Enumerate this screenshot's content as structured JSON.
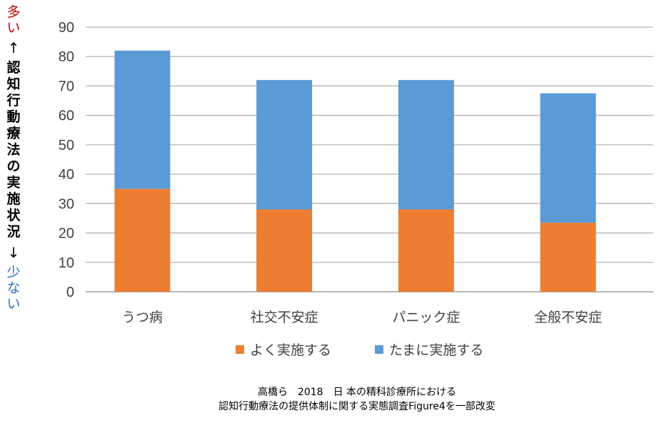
{
  "chart_data": {
    "type": "bar",
    "stacked": true,
    "categories": [
      "うつ病",
      "社交不安症",
      "パニック症",
      "全般不安症"
    ],
    "series": [
      {
        "name": "よく実施する",
        "values": [
          35,
          28,
          28,
          23.5
        ],
        "color": "#ed7d31"
      },
      {
        "name": "たまに実施する",
        "values": [
          47,
          44,
          44,
          44
        ],
        "color": "#5b9bd5"
      }
    ],
    "ylim": [
      0,
      90
    ],
    "yticks": [
      0,
      10,
      20,
      30,
      40,
      50,
      60,
      70,
      80,
      90
    ],
    "grid": true,
    "legend_position": "bottom",
    "ylabel": {
      "high": "多い",
      "arrow_up": "↑",
      "main": "認知行動療法の実施状況",
      "arrow_down": "↓",
      "low": "少ない"
    }
  },
  "caption": {
    "line1": "高橋ら　2018　日 本の精科診療所における",
    "line2": "認知行動療法の提供体制に関する実態調査Figure4を一部改変"
  }
}
